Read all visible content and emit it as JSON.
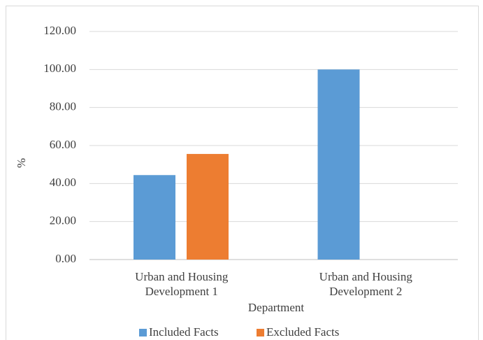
{
  "chart_data": {
    "type": "bar",
    "x_label": "Department",
    "y_label": "%",
    "categories": [
      "Urban and Housing Development 1",
      "Urban and Housing Development 2"
    ],
    "series": [
      {
        "name": "Included Facts",
        "color": "#5b9bd5",
        "values": [
          44.44,
          100
        ]
      },
      {
        "name": "Excluded Facts",
        "color": "#ed7d31",
        "values": [
          55.56,
          0
        ]
      }
    ],
    "ylim": [
      0,
      120
    ],
    "yticks": [
      {
        "value": 0,
        "label": "0.00"
      },
      {
        "value": 20,
        "label": "20.00"
      },
      {
        "value": 40,
        "label": "40.00"
      },
      {
        "value": 60,
        "label": "60.00"
      },
      {
        "value": 80,
        "label": "80.00"
      },
      {
        "value": 100,
        "label": "100.00"
      },
      {
        "value": 120,
        "label": "120.00"
      }
    ],
    "grid": true,
    "legend": "bottom"
  }
}
